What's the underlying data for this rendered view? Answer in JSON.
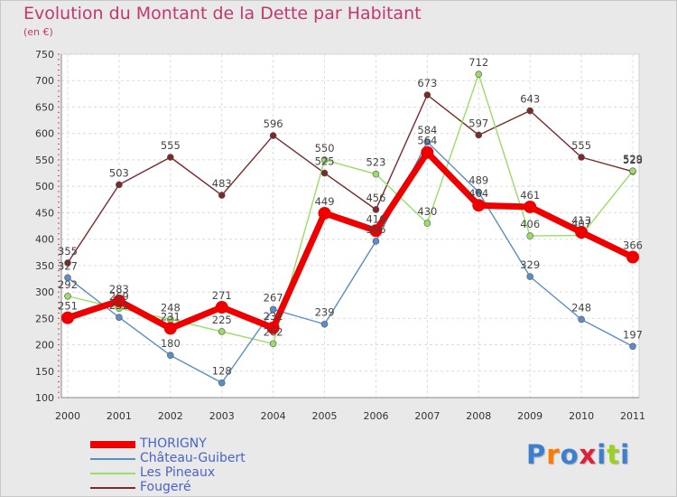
{
  "chart_data": {
    "type": "line",
    "title": "Evolution du Montant de la Dette par Habitant",
    "subtitle": "(en €)",
    "xlabel": "",
    "ylabel": "",
    "ylim": [
      100,
      750
    ],
    "yticks": [
      100,
      150,
      200,
      250,
      300,
      350,
      400,
      450,
      500,
      550,
      600,
      650,
      700,
      750
    ],
    "categories": [
      "2000",
      "2001",
      "2002",
      "2003",
      "2004",
      "2005",
      "2006",
      "2007",
      "2008",
      "2009",
      "2010",
      "2011"
    ],
    "grid": true,
    "legend_position": "bottom-left",
    "series": [
      {
        "name": "THORIGNY",
        "color": "#ee0000",
        "width": 7,
        "marker": 7,
        "values": [
          251,
          283,
          231,
          271,
          232,
          449,
          416,
          564,
          464,
          461,
          413,
          366
        ],
        "labels": [
          "251",
          "283",
          "231",
          "271",
          "232",
          "449",
          "416",
          "564",
          "464",
          "461",
          "413",
          "366"
        ]
      },
      {
        "name": "Château-Guibert",
        "color": "#5a8ec6",
        "width": 1.4,
        "marker": 3.5,
        "values": [
          327,
          252,
          180,
          128,
          267,
          239,
          396,
          584,
          489,
          329,
          248,
          197
        ],
        "labels": [
          "327",
          "252",
          "180",
          "128",
          "267",
          "239",
          "396",
          "584",
          "489",
          "329",
          "248",
          "197"
        ]
      },
      {
        "name": "Les Pineaux",
        "color": "#99dd66",
        "width": 1.4,
        "marker": 3.5,
        "values": [
          292,
          269,
          248,
          225,
          202,
          550,
          523,
          430,
          712,
          406,
          407,
          529
        ],
        "labels": [
          "292",
          "269",
          "248",
          "225",
          "202",
          "550",
          "523",
          "430",
          "712",
          "406",
          "407",
          "529"
        ]
      },
      {
        "name": "Fougeré",
        "color": "#7a2a2a",
        "width": 1.4,
        "marker": 3.5,
        "values": [
          355,
          503,
          555,
          483,
          596,
          525,
          456,
          673,
          597,
          643,
          555,
          528
        ],
        "labels": [
          "355",
          "503",
          "555",
          "483",
          "596",
          "525",
          "456",
          "673",
          "597",
          "643",
          "555",
          "528"
        ]
      }
    ]
  },
  "logo": {
    "text": "Proxiti",
    "colors": [
      "#3a7fd0",
      "#ff7a00",
      "#3a7fd0",
      "#e0203a",
      "#3a7fd0",
      "#9bd21e",
      "#3a7fd0"
    ]
  }
}
